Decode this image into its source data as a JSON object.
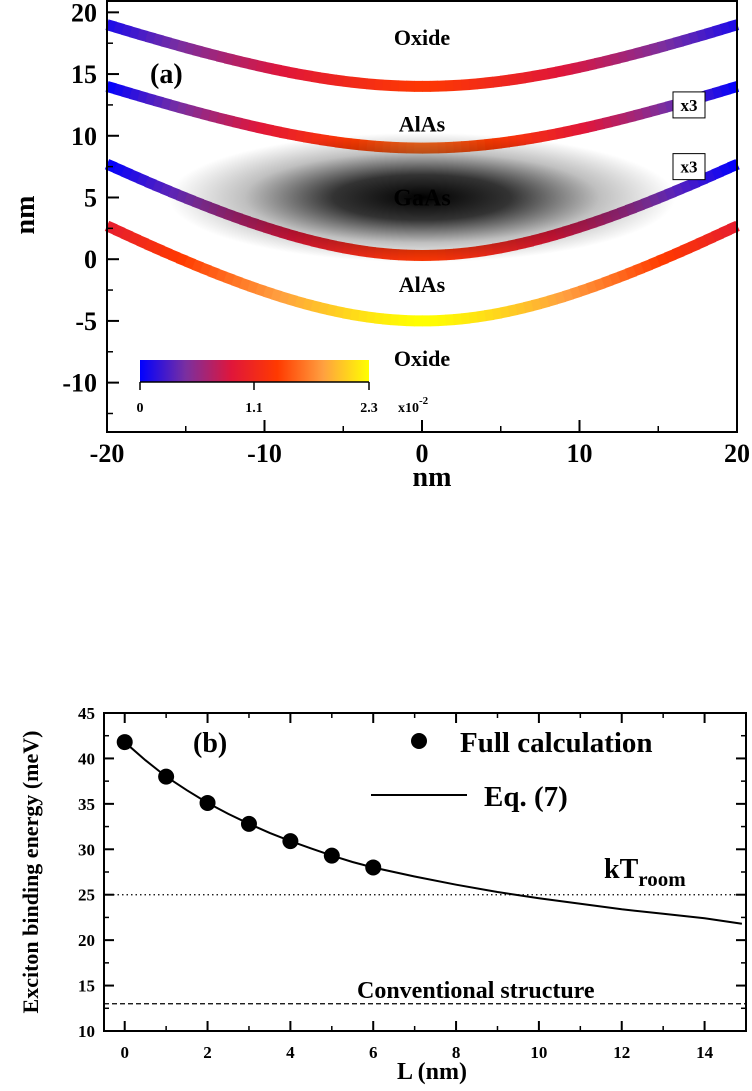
{
  "colors": {
    "colormap": [
      "#0000ff",
      "#7a2fa0",
      "#e0163a",
      "#ff3a00",
      "#ffa040",
      "#ffff00"
    ],
    "axis": "#000000",
    "density": "#000000"
  },
  "chart_data": [
    {
      "type": "heatmap",
      "panel_label": "(a)",
      "xlabel": "nm",
      "ylabel": "nm",
      "xlim": [
        -20,
        20
      ],
      "ylim": [
        -14,
        21
      ],
      "xticks": [
        -20,
        -10,
        0,
        10,
        20
      ],
      "yticks": [
        20,
        15,
        10,
        5,
        0,
        -5,
        -10
      ],
      "layer_labels": [
        {
          "text": "Oxide",
          "x": 0,
          "y": 18
        },
        {
          "text": "AlAs",
          "x": 0,
          "y": 11
        },
        {
          "text": "GaAs",
          "x": 0,
          "y": 5
        },
        {
          "text": "AlAs",
          "x": 0,
          "y": -2
        },
        {
          "text": "Oxide",
          "x": 0,
          "y": -8
        }
      ],
      "interfaces": [
        {
          "name": "interface-1",
          "y_center": 14.0,
          "y_edge": 19.0,
          "value_center": 1.35,
          "value_edge": 0.1,
          "multiplier_label": ""
        },
        {
          "name": "interface-2",
          "y_center": 9.0,
          "y_edge": 14.0,
          "value_center": 1.6,
          "value_edge": 0.0,
          "multiplier_label": "x3",
          "multiplier_x": 20,
          "multiplier_y": 12.5
        },
        {
          "name": "interface-3",
          "y_center": 0.3,
          "y_edge": 7.7,
          "value_center": 1.35,
          "value_edge": 0.0,
          "multiplier_label": "x3",
          "multiplier_x": 20,
          "multiplier_y": 7.5
        },
        {
          "name": "interface-4",
          "y_center": -5.0,
          "y_edge": 2.7,
          "value_center": 2.3,
          "value_edge": 1.0,
          "multiplier_label": ""
        }
      ],
      "density_blob": {
        "x0": 0,
        "y0": 5,
        "sigma_x": 7,
        "sigma_y": 2.5
      },
      "colorbar": {
        "min": "0",
        "mid": "1.1",
        "max": "2.3",
        "unit": "x10",
        "exponent": "-2"
      }
    },
    {
      "type": "scatter",
      "panel_label": "(b)",
      "xlabel": "L (nm)",
      "ylabel": "Exciton binding energy (meV)",
      "xlim": [
        -0.5,
        15
      ],
      "ylim": [
        10,
        45
      ],
      "xticks": [
        0,
        2,
        4,
        6,
        8,
        10,
        12,
        14
      ],
      "yticks": [
        10,
        15,
        20,
        25,
        30,
        35,
        40,
        45
      ],
      "series": [
        {
          "name": "Full calculation",
          "x": [
            0,
            1,
            2,
            3,
            4,
            5,
            6
          ],
          "y": [
            41.8,
            38.0,
            35.1,
            32.8,
            30.9,
            29.3,
            28.0
          ]
        },
        {
          "name": "Eq. (7)",
          "x": [
            0,
            0.5,
            1,
            1.5,
            2,
            2.5,
            3,
            3.5,
            4,
            4.5,
            5,
            5.5,
            6,
            7,
            8,
            9,
            10,
            11,
            12,
            13,
            14,
            14.9
          ],
          "y": [
            41.8,
            39.8,
            38.0,
            36.5,
            35.1,
            33.9,
            32.8,
            31.8,
            30.9,
            30.1,
            29.3,
            28.6,
            28.0,
            27.0,
            26.1,
            25.3,
            24.6,
            24.0,
            23.4,
            22.9,
            22.4,
            21.8
          ]
        }
      ],
      "reference_lines": [
        {
          "label": "kT",
          "label_sub": "room",
          "y": 25,
          "style": "dotted"
        },
        {
          "label": "Conventional structure",
          "y": 13,
          "style": "dashed"
        }
      ]
    }
  ]
}
